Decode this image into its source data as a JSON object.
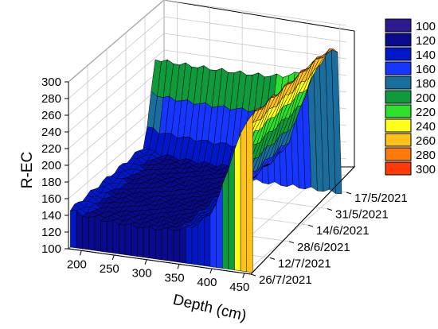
{
  "chart_data": {
    "type": "surface3d",
    "title": "",
    "xlabel": "Depth (cm)",
    "ylabel": "R-EC",
    "x_ticks": [
      "200",
      "250",
      "300",
      "350",
      "400",
      "450"
    ],
    "z_ticks": [
      "100",
      "120",
      "140",
      "160",
      "180",
      "200",
      "220",
      "240",
      "260",
      "280",
      "300"
    ],
    "date_ticks": [
      "17/5/2021",
      "31/5/2021",
      "14/6/2021",
      "28/6/2021",
      "12/7/2021",
      "26/7/2021"
    ],
    "xlim": [
      180,
      460
    ],
    "zlim": [
      100,
      300
    ],
    "legend": {
      "position": "right",
      "entries": [
        {
          "label": "100",
          "color": "#2b1a8f"
        },
        {
          "label": "120",
          "color": "#0a0a8c"
        },
        {
          "label": "140",
          "color": "#0018c8"
        },
        {
          "label": "160",
          "color": "#1636ff"
        },
        {
          "label": "180",
          "color": "#1a6e9e"
        },
        {
          "label": "200",
          "color": "#0f9a3c"
        },
        {
          "label": "220",
          "color": "#2ee02e"
        },
        {
          "label": "240",
          "color": "#ffff1a"
        },
        {
          "label": "260",
          "color": "#ffc21a"
        },
        {
          "label": "280",
          "color": "#ff7a0a"
        },
        {
          "label": "300",
          "color": "#ff3a0a"
        }
      ]
    },
    "surface_profile": {
      "depth": [
        180,
        200,
        225,
        250,
        275,
        300,
        325,
        350,
        375,
        400,
        410,
        420,
        430,
        440,
        450,
        455
      ],
      "r_ec": [
        145,
        140,
        138,
        137,
        136,
        136,
        137,
        140,
        148,
        168,
        190,
        215,
        240,
        260,
        280,
        290
      ]
    },
    "back_wall_level": 275,
    "grid": true
  }
}
